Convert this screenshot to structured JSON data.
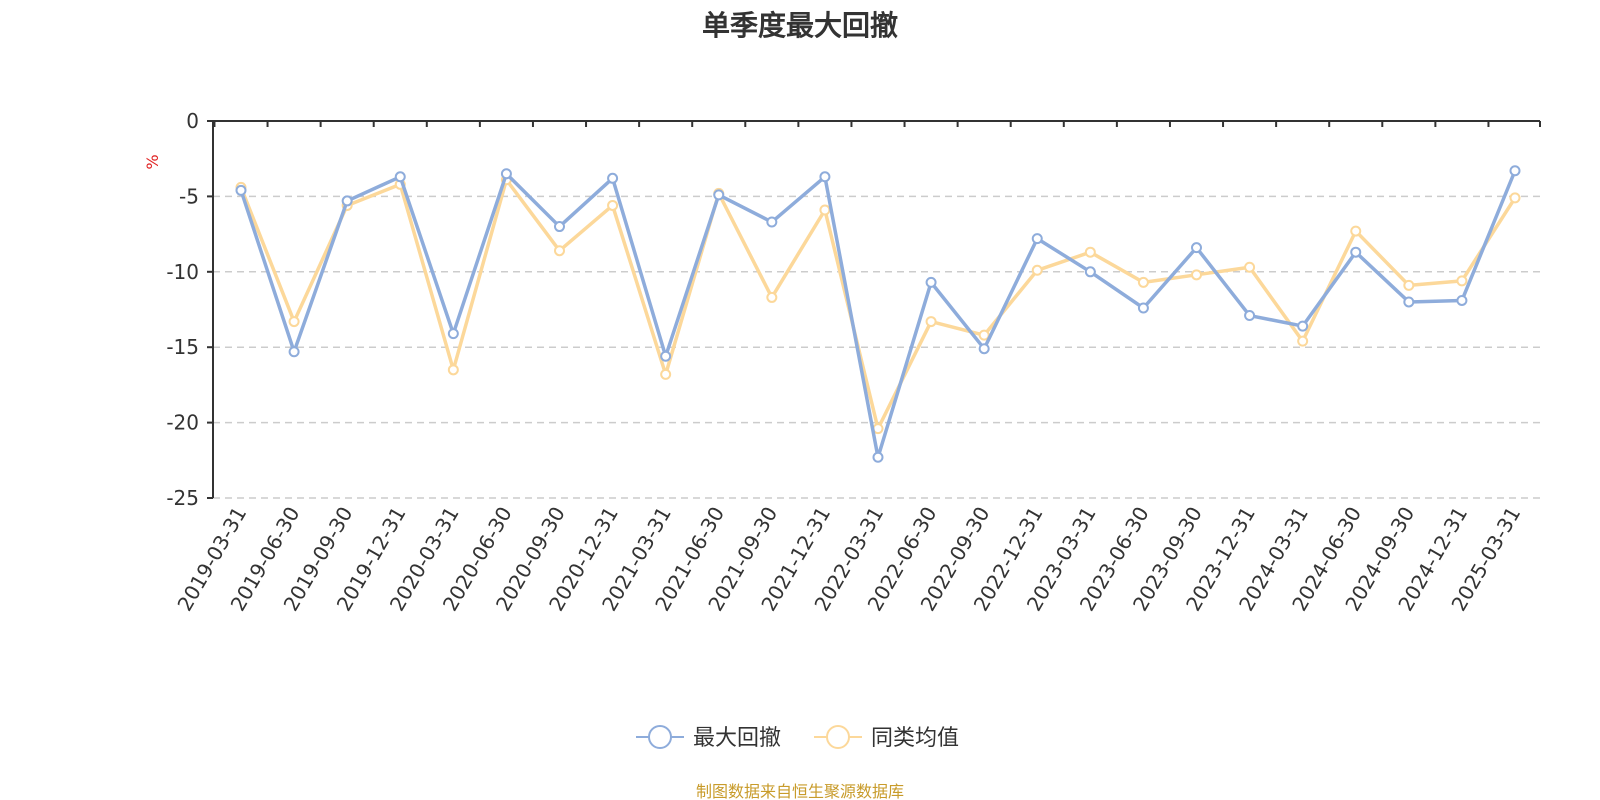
{
  "chart_data": {
    "type": "line",
    "title": "单季度最大回撤",
    "ylabel": "%",
    "xlabel": "",
    "ylim": [
      -25,
      0
    ],
    "yticks": [
      0,
      -5,
      -10,
      -15,
      -20,
      -25
    ],
    "grid": true,
    "legend_position": "bottom",
    "categories": [
      "2019-03-31",
      "2019-06-30",
      "2019-09-30",
      "2019-12-31",
      "2020-03-31",
      "2020-06-30",
      "2020-09-30",
      "2020-12-31",
      "2021-03-31",
      "2021-06-30",
      "2021-09-30",
      "2021-12-31",
      "2022-03-31",
      "2022-06-30",
      "2022-09-30",
      "2022-12-31",
      "2023-03-31",
      "2023-06-30",
      "2023-09-30",
      "2023-12-31",
      "2024-03-31",
      "2024-06-30",
      "2024-09-30",
      "2024-12-31",
      "2025-03-31"
    ],
    "series": [
      {
        "name": "最大回撤",
        "color": "#8eacdb",
        "values": [
          -4.6,
          -15.3,
          -5.3,
          -3.7,
          -14.1,
          -3.5,
          -7.0,
          -3.8,
          -15.6,
          -4.9,
          -6.7,
          -3.7,
          -22.3,
          -10.7,
          -15.1,
          -7.8,
          -10.0,
          -12.4,
          -8.4,
          -12.9,
          -13.6,
          -8.7,
          -12.0,
          -11.9,
          -3.3
        ]
      },
      {
        "name": "同类均值",
        "color": "#fcd89a",
        "values": [
          -4.4,
          -13.3,
          -5.6,
          -4.2,
          -16.5,
          -3.9,
          -8.6,
          -5.6,
          -16.8,
          -4.8,
          -11.7,
          -5.9,
          -20.4,
          -13.3,
          -14.2,
          -9.9,
          -8.7,
          -10.7,
          -10.2,
          -9.7,
          -14.6,
          -7.3,
          -10.9,
          -10.6,
          -5.1
        ]
      }
    ]
  },
  "source_note": "制图数据来自恒生聚源数据库"
}
